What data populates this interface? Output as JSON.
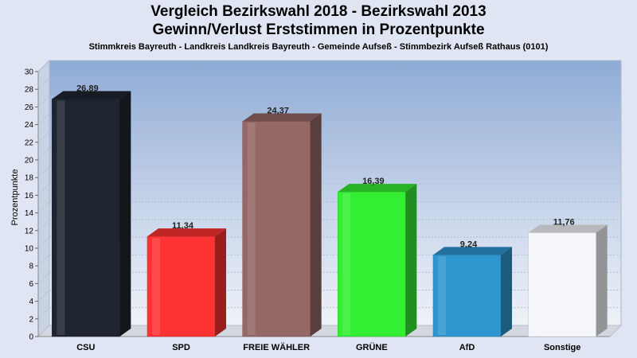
{
  "chart_data": {
    "type": "bar",
    "title": "Vergleich Bezirkswahl 2018 - Bezirkswahl 2013",
    "title_line2": "Gewinn/Verlust Erststimmen in Prozentpunkte",
    "subtitle": "Stimmkreis Bayreuth - Landkreis Landkreis Bayreuth - Gemeinde Aufseß - Stimmbezirk Aufseß Rathaus (0101)",
    "ylabel": "Prozentpunkte",
    "ylim": [
      0,
      30
    ],
    "yticks": [
      0,
      2,
      4,
      6,
      8,
      10,
      12,
      14,
      16,
      18,
      20,
      22,
      24,
      26,
      28,
      30
    ],
    "grid": true,
    "categories": [
      "CSU",
      "SPD",
      "FREIE WÄHLER",
      "GRÜNE",
      "AfD",
      "Sonstige"
    ],
    "values": [
      26.89,
      11.34,
      24.37,
      16.39,
      9.24,
      11.76
    ],
    "value_labels": [
      "26,89",
      "11,34",
      "24,37",
      "16,39",
      "9,24",
      "11,76"
    ],
    "colors": [
      "#1e2530",
      "#ff3333",
      "#956767",
      "#33ee33",
      "#2f97d0",
      "#f4f6fa"
    ]
  }
}
